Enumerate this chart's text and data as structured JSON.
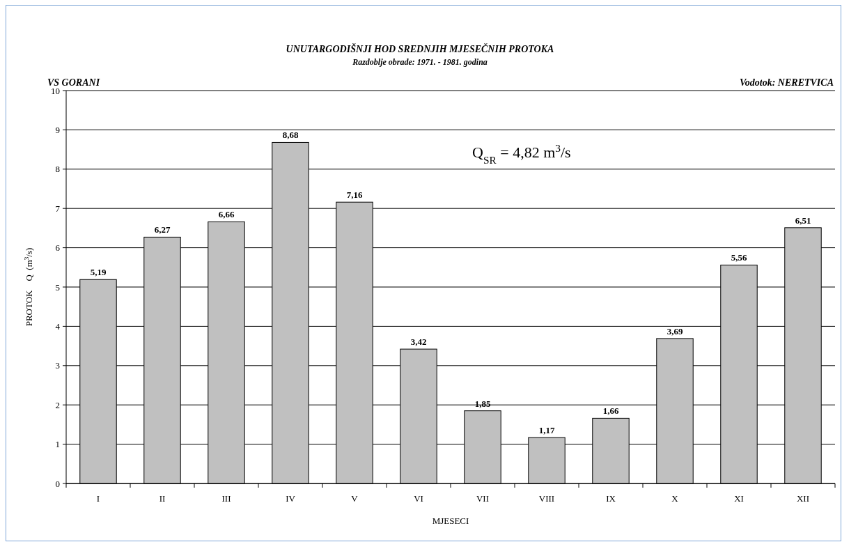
{
  "chart_data": {
    "type": "bar",
    "title": "UNUTARGODIŠNJI HOD SREDNJIH MJESEČNIH PROTOKA",
    "subtitle": "Razdoblje obrade: 1971. - 1981. godina",
    "xlabel": "MJESECI",
    "ylabel": "PROTOK    Q  (m$^{3}$/s)",
    "annotations": [
      "VS GORANI",
      "Vodotok: NERETVICA",
      "Q$_{SR}$ = 4,82 m$^{3}$/s"
    ],
    "categories": [
      "I",
      "II",
      "III",
      "IV",
      "V",
      "VI",
      "VII",
      "VIII",
      "IX",
      "X",
      "XI",
      "XII"
    ],
    "values": [
      5.19,
      6.27,
      6.66,
      8.68,
      7.16,
      3.42,
      1.85,
      1.17,
      1.66,
      3.69,
      5.56,
      6.51
    ],
    "value_labels": [
      "5,19",
      "6,27",
      "6,66",
      "8,68",
      "7,16",
      "3,42",
      "1,85",
      "1,17",
      "1,66",
      "3,69",
      "5,56",
      "6,51"
    ],
    "color": "#c0c0c0",
    "ylim": [
      0,
      10
    ],
    "yticks": [
      0,
      1,
      2,
      3,
      4,
      5,
      6,
      7,
      8,
      9,
      10
    ],
    "grid": "y"
  }
}
